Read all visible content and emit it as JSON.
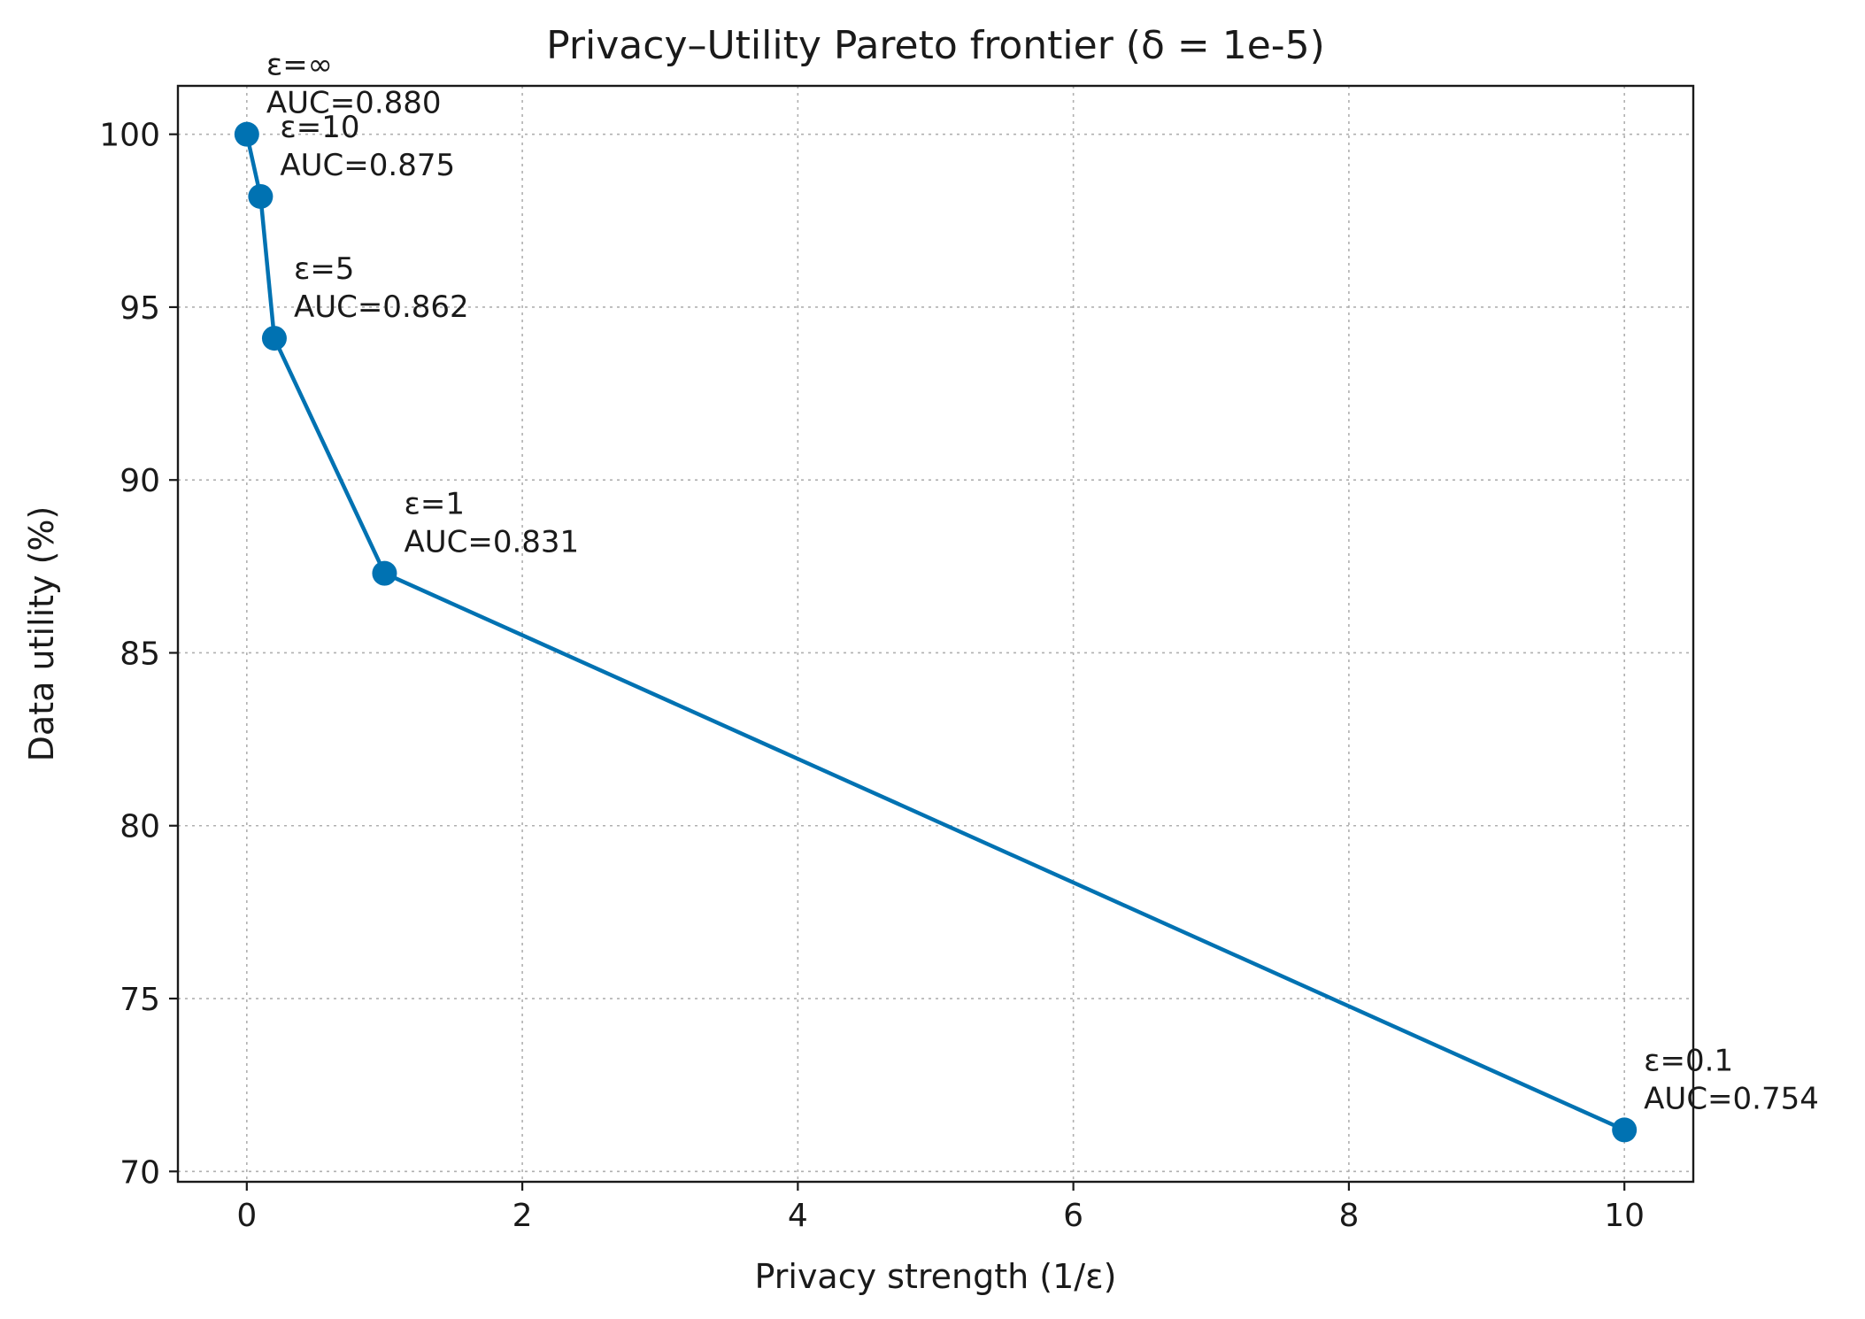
{
  "chart_data": {
    "type": "line",
    "title": "Privacy–Utility Pareto frontier (δ = 1e-5)",
    "xlabel": "Privacy strength (1/ε)",
    "ylabel": "Data utility (%)",
    "xlim": [
      -0.5,
      10.5
    ],
    "ylim": [
      69.7,
      101.4
    ],
    "xticks": [
      0,
      2,
      4,
      6,
      8,
      10
    ],
    "yticks": [
      70,
      75,
      80,
      85,
      90,
      95,
      100
    ],
    "grid": true,
    "color": "#0072b2",
    "series": [
      {
        "points": [
          {
            "x": 0.0,
            "y": 100.0,
            "eps_label": "ε=∞",
            "auc_label": "AUC=0.880"
          },
          {
            "x": 0.1,
            "y": 98.2,
            "eps_label": "ε=10",
            "auc_label": "AUC=0.875"
          },
          {
            "x": 0.2,
            "y": 94.1,
            "eps_label": "ε=5",
            "auc_label": "AUC=0.862"
          },
          {
            "x": 1.0,
            "y": 87.3,
            "eps_label": "ε=1",
            "auc_label": "AUC=0.831"
          },
          {
            "x": 10.0,
            "y": 71.2,
            "eps_label": "ε=0.1",
            "auc_label": "AUC=0.754"
          }
        ]
      }
    ]
  }
}
